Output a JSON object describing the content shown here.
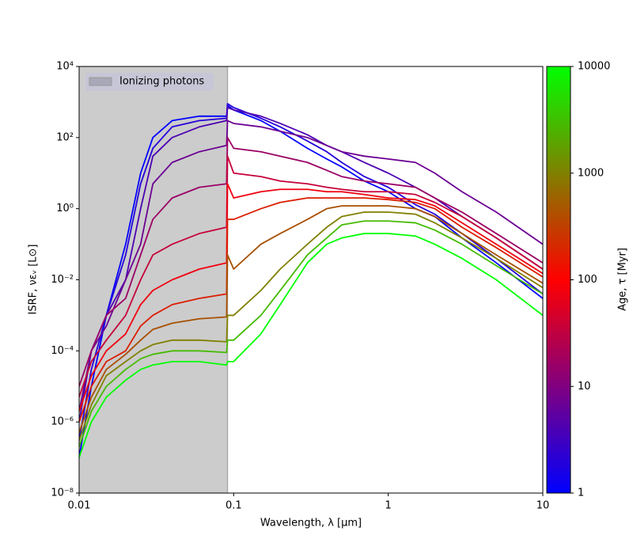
{
  "chart_data": {
    "type": "line",
    "x_label": "Wavelength, λ [μm]",
    "y_label": "ISRF, νεᵥ [L⊙]",
    "x_scale": "log",
    "y_scale": "log",
    "xlim": [
      0.01,
      10
    ],
    "ylim": [
      1e-08,
      10000
    ],
    "xticks": [
      0.01,
      0.1,
      1,
      10
    ],
    "yticks": [
      {
        "value": 1e-08,
        "label": "10⁻⁸"
      },
      {
        "value": 1e-06,
        "label": "10⁻⁶"
      },
      {
        "value": 0.0001,
        "label": "10⁻⁴"
      },
      {
        "value": 0.01,
        "label": "10⁻²"
      },
      {
        "value": 1,
        "label": "10⁰"
      },
      {
        "value": 100,
        "label": "10²"
      },
      {
        "value": 10000,
        "label": "10⁴"
      }
    ],
    "shaded_region": {
      "range": [
        0.01,
        0.0912
      ],
      "label": "Ionizing photons",
      "color": "#cccccc"
    },
    "legend": "upper left",
    "colorbar": {
      "label": "Age, τ [Myr]",
      "lim": [
        1,
        10000
      ],
      "ticks": [
        1,
        10,
        100,
        1000,
        10000
      ],
      "colors": [
        "#0000ff",
        "#800080",
        "#ff0000",
        "#808000",
        "#00ff00"
      ]
    },
    "x": [
      0.01,
      0.012,
      0.015,
      0.02,
      0.025,
      0.03,
      0.04,
      0.06,
      0.09,
      0.0912,
      0.1,
      0.15,
      0.2,
      0.3,
      0.4,
      0.5,
      0.7,
      1,
      1.5,
      2,
      3,
      5,
      10
    ],
    "series": [
      {
        "color": "#0000ff",
        "values": [
          1e-07,
          1e-05,
          0.001,
          0.1,
          10,
          100,
          300,
          400,
          400,
          800,
          600,
          300,
          150,
          50,
          25,
          15,
          6,
          3,
          1,
          0.6,
          0.15,
          0.03,
          0.003
        ]
      },
      {
        "color": "#2600d9",
        "values": [
          3e-07,
          3e-05,
          0.001,
          0.05,
          5,
          50,
          200,
          300,
          350,
          900,
          700,
          350,
          200,
          80,
          40,
          20,
          8,
          4,
          1.3,
          0.7,
          0.2,
          0.04,
          0.004
        ]
      },
      {
        "color": "#4d00b2",
        "values": [
          1e-06,
          0.0001,
          0.001,
          0.01,
          1,
          30,
          100,
          200,
          300,
          700,
          600,
          400,
          250,
          120,
          60,
          40,
          20,
          10,
          4,
          2,
          0.6,
          0.15,
          0.02
        ]
      },
      {
        "color": "#6c0093",
        "values": [
          2e-06,
          0.0001,
          0.0005,
          0.01,
          0.1,
          5,
          20,
          40,
          60,
          300,
          250,
          200,
          150,
          100,
          60,
          40,
          30,
          25,
          20,
          10,
          3,
          0.8,
          0.1
        ]
      },
      {
        "color": "#9a0065",
        "values": [
          1e-05,
          0.0001,
          0.001,
          0.003,
          0.05,
          0.5,
          2,
          4,
          5,
          100,
          50,
          40,
          30,
          20,
          12,
          8,
          6,
          5,
          4,
          2,
          0.8,
          0.2,
          0.03
        ]
      },
      {
        "color": "#c60039",
        "values": [
          5e-06,
          5e-05,
          0.0002,
          0.001,
          0.01,
          0.05,
          0.1,
          0.2,
          0.3,
          30,
          10,
          8,
          6,
          5,
          4,
          3.5,
          3,
          3,
          2.5,
          1.5,
          0.6,
          0.15,
          0.02
        ]
      },
      {
        "color": "#f0000f",
        "values": [
          2e-06,
          2e-05,
          0.0001,
          0.0003,
          0.002,
          0.005,
          0.01,
          0.02,
          0.03,
          5,
          2,
          3,
          3.5,
          3.5,
          3,
          3,
          2.5,
          2,
          1.8,
          1.2,
          0.4,
          0.1,
          0.015
        ]
      },
      {
        "color": "#dc1d00",
        "values": [
          1e-06,
          1e-05,
          5e-05,
          0.0001,
          0.0005,
          0.001,
          0.002,
          0.003,
          0.004,
          0.5,
          0.5,
          1,
          1.5,
          2,
          2,
          2,
          2,
          1.8,
          1.5,
          1,
          0.3,
          0.08,
          0.012
        ]
      },
      {
        "color": "#a84f00",
        "values": [
          5e-07,
          5e-06,
          3e-05,
          8e-05,
          0.0002,
          0.0004,
          0.0006,
          0.0008,
          0.0009,
          0.05,
          0.02,
          0.1,
          0.2,
          0.5,
          1,
          1.2,
          1.2,
          1.2,
          1,
          0.6,
          0.2,
          0.05,
          0.008
        ]
      },
      {
        "color": "#808000",
        "values": [
          3e-07,
          3e-06,
          2e-05,
          5e-05,
          0.0001,
          0.00015,
          0.0002,
          0.0002,
          0.00018,
          0.001,
          0.001,
          0.005,
          0.02,
          0.1,
          0.3,
          0.6,
          0.8,
          0.8,
          0.7,
          0.4,
          0.15,
          0.04,
          0.006
        ]
      },
      {
        "color": "#44ba00",
        "values": [
          2e-07,
          2e-06,
          1e-05,
          3e-05,
          6e-05,
          8e-05,
          0.0001,
          0.0001,
          9e-05,
          0.0002,
          0.0002,
          0.001,
          0.005,
          0.05,
          0.15,
          0.35,
          0.45,
          0.45,
          0.4,
          0.25,
          0.1,
          0.025,
          0.004
        ]
      },
      {
        "color": "#00ff00",
        "values": [
          1e-07,
          1e-06,
          5e-06,
          1.5e-05,
          3e-05,
          4e-05,
          5e-05,
          5e-05,
          4e-05,
          5e-05,
          5e-05,
          0.0003,
          0.002,
          0.03,
          0.1,
          0.15,
          0.2,
          0.2,
          0.17,
          0.1,
          0.04,
          0.01,
          0.001
        ]
      }
    ]
  }
}
